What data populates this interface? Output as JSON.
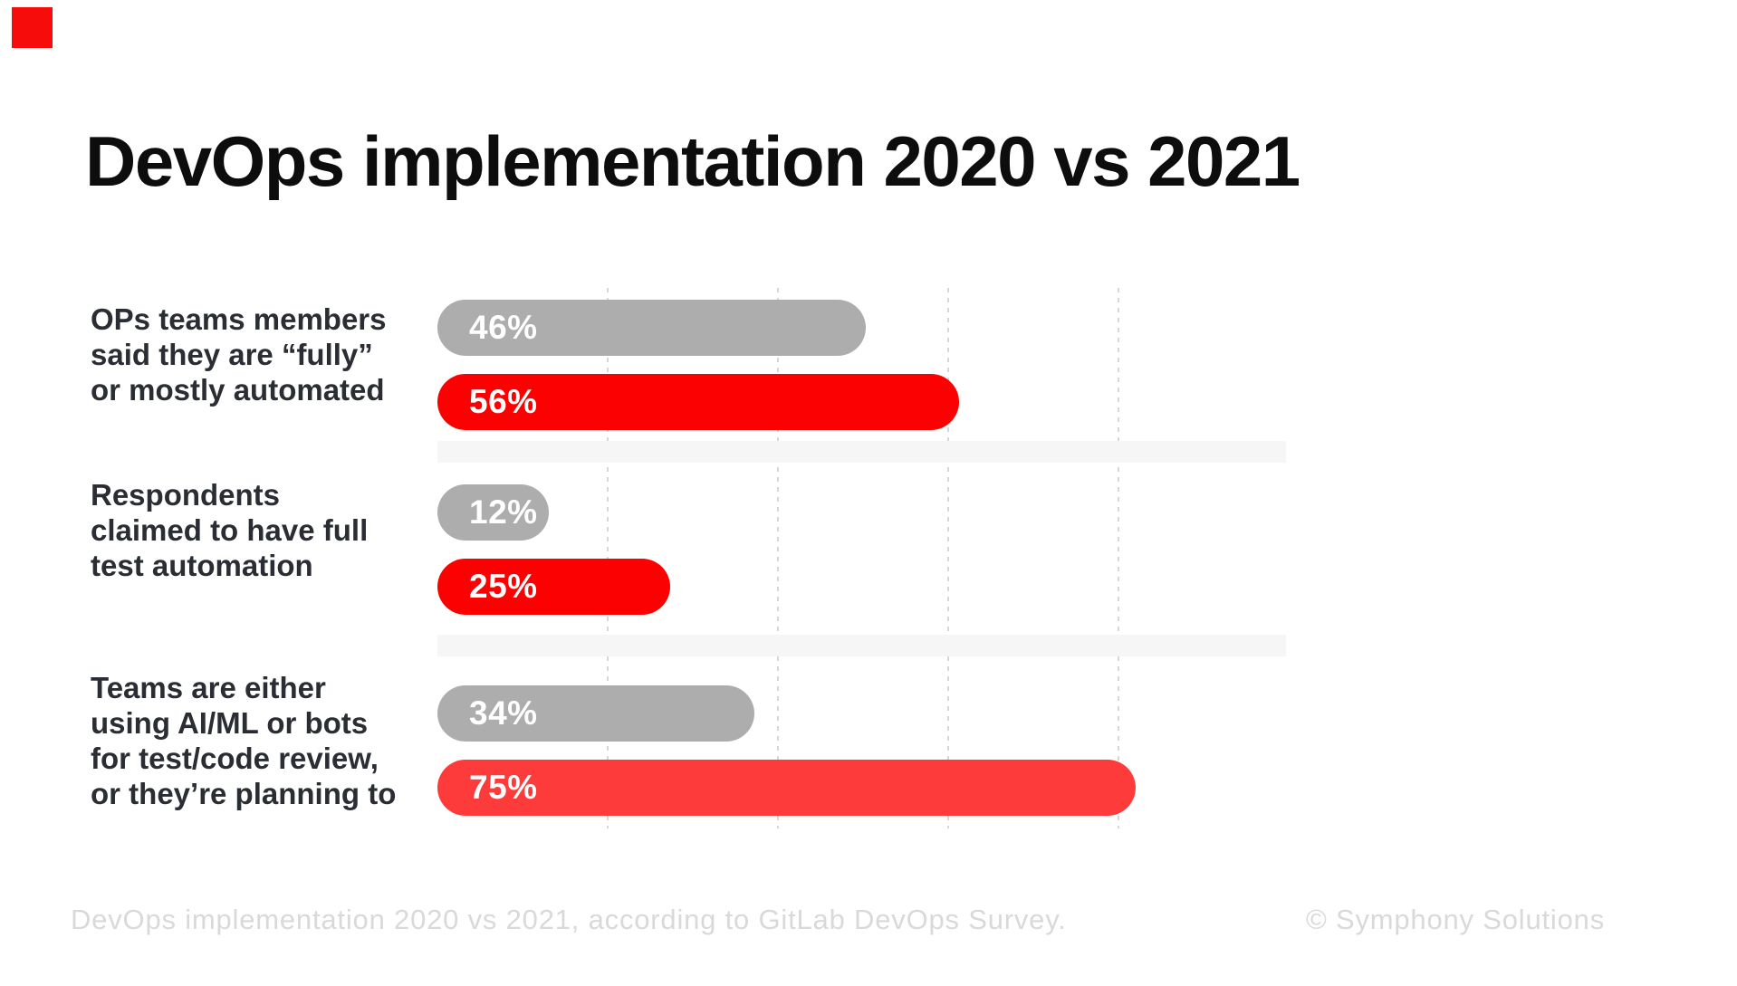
{
  "page": {
    "title": "DevOps implementation 2020 vs 2021"
  },
  "logo": {
    "color": "#f70c0c"
  },
  "chart_data": {
    "type": "bar",
    "orientation": "horizontal",
    "title": "DevOps implementation 2020 vs 2021",
    "value_suffix": "%",
    "xlim": [
      0,
      75
    ],
    "grid": "dashed-vertical",
    "legend": "none",
    "categories": [
      "OPs teams members said they are “fully” or mostly automated",
      "Respondents claimed to have full test automation",
      "Teams are either using AI/ML or bots for test/code review, or they’re planning to"
    ],
    "series": [
      {
        "name": "2020",
        "values": [
          46,
          12,
          34
        ],
        "color": "#adadad",
        "bar_colors": [
          "#adadad",
          "#adadad",
          "#adadad"
        ]
      },
      {
        "name": "2021",
        "values": [
          56,
          25,
          75
        ],
        "color": "#fc0101",
        "bar_colors": [
          "#fc0101",
          "#fc0101",
          "#fe3b3b"
        ]
      }
    ]
  },
  "groups": [
    {
      "label_lines": [
        "OPs teams members",
        "said they are “fully”",
        "or mostly automated"
      ]
    },
    {
      "label_lines": [
        "Respondents",
        "claimed to have full",
        "test automation"
      ]
    },
    {
      "label_lines": [
        "Teams are either",
        "using AI/ML or bots",
        "for test/code review,",
        "or they’re planning to"
      ]
    }
  ],
  "footer": {
    "caption": "DevOps implementation 2020 vs 2021, according to GitLab DevOps Survey.",
    "copyright": "© Symphony Solutions"
  }
}
